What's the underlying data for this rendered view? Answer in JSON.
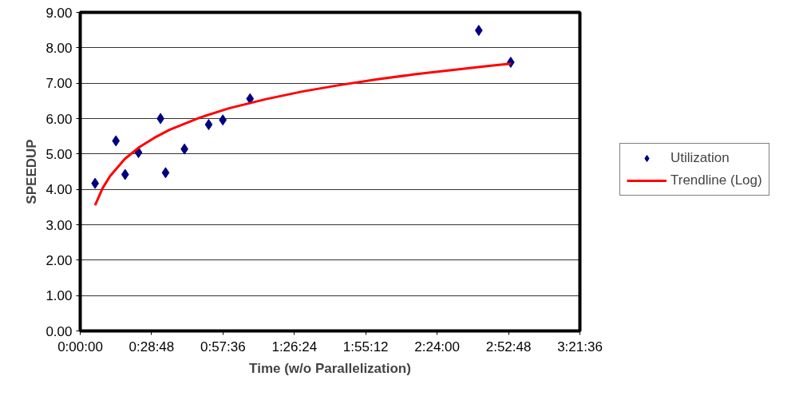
{
  "chart_data": {
    "type": "scatter",
    "xlabel": "Time (w/o Parallelization)",
    "ylabel": "SPEEDUP",
    "xlim": [
      0,
      3.36
    ],
    "ylim": [
      0,
      9
    ],
    "xticks": [
      {
        "value": 0,
        "label": "0:00:00"
      },
      {
        "value": 0.48,
        "label": "0:28:48"
      },
      {
        "value": 0.96,
        "label": "0:57:36"
      },
      {
        "value": 1.44,
        "label": "1:26:24"
      },
      {
        "value": 1.92,
        "label": "1:55:12"
      },
      {
        "value": 2.4,
        "label": "2:24:00"
      },
      {
        "value": 2.88,
        "label": "2:52:48"
      },
      {
        "value": 3.36,
        "label": "3:21:36"
      }
    ],
    "yticks": [
      {
        "value": 0,
        "label": "0.00"
      },
      {
        "value": 1,
        "label": "1.00"
      },
      {
        "value": 2,
        "label": "2.00"
      },
      {
        "value": 3,
        "label": "3.00"
      },
      {
        "value": 4,
        "label": "4.00"
      },
      {
        "value": 5,
        "label": "5.00"
      },
      {
        "value": 6,
        "label": "6.00"
      },
      {
        "value": 7,
        "label": "7.00"
      },
      {
        "value": 8,
        "label": "8.00"
      },
      {
        "value": 9,
        "label": "9.00"
      }
    ],
    "grid": "y",
    "legend": "right",
    "series": [
      {
        "name": "Utilization",
        "marker": "diamond",
        "color": "#000080",
        "x": [
          0.1,
          0.24,
          0.302,
          0.392,
          0.54,
          0.574,
          0.701,
          0.864,
          0.959,
          1.142,
          2.68,
          2.895
        ],
        "values": [
          4.17,
          5.37,
          4.42,
          5.04,
          6.0,
          4.47,
          5.14,
          5.83,
          5.96,
          6.56,
          8.49,
          7.59
        ]
      },
      {
        "name": "Trendline (Log)",
        "type": "line",
        "line_style": "solid",
        "color": "#ff0000",
        "x": [
          0.1,
          0.15,
          0.2,
          0.3,
          0.4,
          0.5,
          0.6,
          0.8,
          1.0,
          1.25,
          1.5,
          1.75,
          2.0,
          2.25,
          2.5,
          2.75,
          2.895
        ],
        "values": [
          3.55,
          4.03,
          4.37,
          4.86,
          5.2,
          5.46,
          5.68,
          6.02,
          6.29,
          6.55,
          6.77,
          6.95,
          7.11,
          7.25,
          7.37,
          7.49,
          7.55
        ]
      }
    ]
  }
}
